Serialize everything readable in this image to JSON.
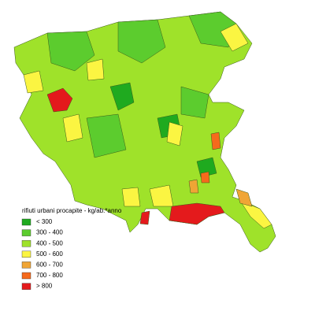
{
  "legend": {
    "title": "rifiuti urbani procapite - kg/ab.*anno",
    "items": [
      {
        "label": "< 300",
        "color": "#1faa1f"
      },
      {
        "label": "300 - 400",
        "color": "#5ccc2e"
      },
      {
        "label": "400 - 500",
        "color": "#9fe22a"
      },
      {
        "label": "500 - 600",
        "color": "#fbf542"
      },
      {
        "label": "600 - 700",
        "color": "#f0a535"
      },
      {
        "label": "700 - 800",
        "color": "#f56a1c"
      },
      {
        "label": "> 800",
        "color": "#e41a1c"
      }
    ]
  }
}
